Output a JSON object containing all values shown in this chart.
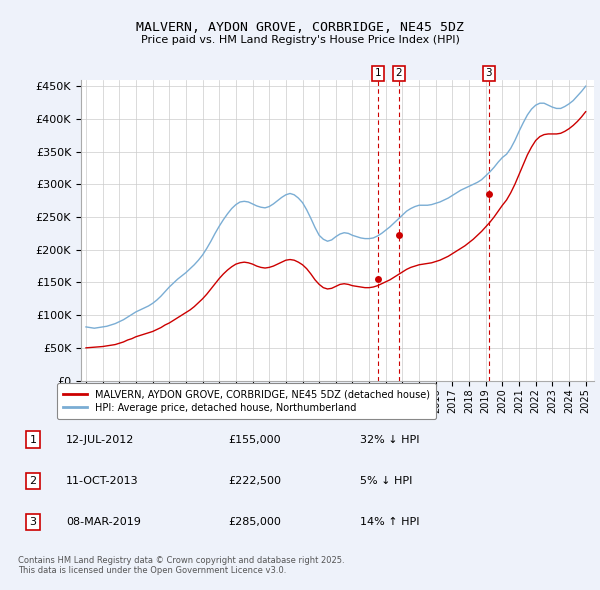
{
  "title": "MALVERN, AYDON GROVE, CORBRIDGE, NE45 5DZ",
  "subtitle": "Price paid vs. HM Land Registry's House Price Index (HPI)",
  "ylim": [
    0,
    460000
  ],
  "yticks": [
    0,
    50000,
    100000,
    150000,
    200000,
    250000,
    300000,
    350000,
    400000,
    450000
  ],
  "ytick_labels": [
    "£0",
    "£50K",
    "£100K",
    "£150K",
    "£200K",
    "£250K",
    "£300K",
    "£350K",
    "£400K",
    "£450K"
  ],
  "background_color": "#eef2fa",
  "plot_background": "#ffffff",
  "grid_color": "#cccccc",
  "red_line_color": "#cc0000",
  "blue_line_color": "#7aadd4",
  "sale_marker_color": "#cc0000",
  "vline_color": "#cc0000",
  "legend_label_red": "MALVERN, AYDON GROVE, CORBRIDGE, NE45 5DZ (detached house)",
  "legend_label_blue": "HPI: Average price, detached house, Northumberland",
  "sales": [
    {
      "num": 1,
      "date": "12-JUL-2012",
      "x": 2012.53,
      "price": 155000,
      "hpi_pct": "32% ↓ HPI"
    },
    {
      "num": 2,
      "date": "11-OCT-2013",
      "x": 2013.78,
      "price": 222500,
      "hpi_pct": "5% ↓ HPI"
    },
    {
      "num": 3,
      "date": "08-MAR-2019",
      "x": 2019.18,
      "price": 285000,
      "hpi_pct": "14% ↑ HPI"
    }
  ],
  "footer": "Contains HM Land Registry data © Crown copyright and database right 2025.\nThis data is licensed under the Open Government Licence v3.0.",
  "hpi_data": {
    "years": [
      1995.0,
      1995.25,
      1995.5,
      1995.75,
      1996.0,
      1996.25,
      1996.5,
      1996.75,
      1997.0,
      1997.25,
      1997.5,
      1997.75,
      1998.0,
      1998.25,
      1998.5,
      1998.75,
      1999.0,
      1999.25,
      1999.5,
      1999.75,
      2000.0,
      2000.25,
      2000.5,
      2000.75,
      2001.0,
      2001.25,
      2001.5,
      2001.75,
      2002.0,
      2002.25,
      2002.5,
      2002.75,
      2003.0,
      2003.25,
      2003.5,
      2003.75,
      2004.0,
      2004.25,
      2004.5,
      2004.75,
      2005.0,
      2005.25,
      2005.5,
      2005.75,
      2006.0,
      2006.25,
      2006.5,
      2006.75,
      2007.0,
      2007.25,
      2007.5,
      2007.75,
      2008.0,
      2008.25,
      2008.5,
      2008.75,
      2009.0,
      2009.25,
      2009.5,
      2009.75,
      2010.0,
      2010.25,
      2010.5,
      2010.75,
      2011.0,
      2011.25,
      2011.5,
      2011.75,
      2012.0,
      2012.25,
      2012.5,
      2012.75,
      2013.0,
      2013.25,
      2013.5,
      2013.75,
      2014.0,
      2014.25,
      2014.5,
      2014.75,
      2015.0,
      2015.25,
      2015.5,
      2015.75,
      2016.0,
      2016.25,
      2016.5,
      2016.75,
      2017.0,
      2017.25,
      2017.5,
      2017.75,
      2018.0,
      2018.25,
      2018.5,
      2018.75,
      2019.0,
      2019.25,
      2019.5,
      2019.75,
      2020.0,
      2020.25,
      2020.5,
      2020.75,
      2021.0,
      2021.25,
      2021.5,
      2021.75,
      2022.0,
      2022.25,
      2022.5,
      2022.75,
      2023.0,
      2023.25,
      2023.5,
      2023.75,
      2024.0,
      2024.25,
      2024.5,
      2024.75,
      2025.0
    ],
    "values": [
      82000,
      81000,
      80000,
      81000,
      82000,
      83000,
      85000,
      87000,
      90000,
      93000,
      97000,
      101000,
      105000,
      108000,
      111000,
      114000,
      118000,
      123000,
      129000,
      136000,
      143000,
      149000,
      155000,
      160000,
      165000,
      171000,
      177000,
      184000,
      192000,
      202000,
      213000,
      225000,
      236000,
      246000,
      255000,
      263000,
      269000,
      273000,
      274000,
      273000,
      270000,
      267000,
      265000,
      264000,
      266000,
      270000,
      275000,
      280000,
      284000,
      286000,
      284000,
      279000,
      272000,
      261000,
      248000,
      234000,
      222000,
      216000,
      213000,
      215000,
      220000,
      224000,
      226000,
      225000,
      222000,
      220000,
      218000,
      217000,
      217000,
      218000,
      221000,
      225000,
      230000,
      235000,
      241000,
      247000,
      253000,
      259000,
      263000,
      266000,
      268000,
      268000,
      268000,
      269000,
      271000,
      273000,
      276000,
      279000,
      283000,
      287000,
      291000,
      294000,
      297000,
      300000,
      303000,
      307000,
      313000,
      319000,
      326000,
      334000,
      341000,
      346000,
      355000,
      367000,
      381000,
      394000,
      406000,
      415000,
      421000,
      424000,
      424000,
      421000,
      418000,
      416000,
      416000,
      419000,
      423000,
      428000,
      435000,
      442000,
      450000
    ]
  },
  "price_data": {
    "years": [
      1995.0,
      1995.25,
      1995.5,
      1995.75,
      1996.0,
      1996.25,
      1996.5,
      1996.75,
      1997.0,
      1997.25,
      1997.5,
      1997.75,
      1998.0,
      1998.25,
      1998.5,
      1998.75,
      1999.0,
      1999.25,
      1999.5,
      1999.75,
      2000.0,
      2000.25,
      2000.5,
      2000.75,
      2001.0,
      2001.25,
      2001.5,
      2001.75,
      2002.0,
      2002.25,
      2002.5,
      2002.75,
      2003.0,
      2003.25,
      2003.5,
      2003.75,
      2004.0,
      2004.25,
      2004.5,
      2004.75,
      2005.0,
      2005.25,
      2005.5,
      2005.75,
      2006.0,
      2006.25,
      2006.5,
      2006.75,
      2007.0,
      2007.25,
      2007.5,
      2007.75,
      2008.0,
      2008.25,
      2008.5,
      2008.75,
      2009.0,
      2009.25,
      2009.5,
      2009.75,
      2010.0,
      2010.25,
      2010.5,
      2010.75,
      2011.0,
      2011.25,
      2011.5,
      2011.75,
      2012.0,
      2012.25,
      2012.5,
      2012.75,
      2013.0,
      2013.25,
      2013.5,
      2013.75,
      2014.0,
      2014.25,
      2014.5,
      2014.75,
      2015.0,
      2015.25,
      2015.5,
      2015.75,
      2016.0,
      2016.25,
      2016.5,
      2016.75,
      2017.0,
      2017.25,
      2017.5,
      2017.75,
      2018.0,
      2018.25,
      2018.5,
      2018.75,
      2019.0,
      2019.25,
      2019.5,
      2019.75,
      2020.0,
      2020.25,
      2020.5,
      2020.75,
      2021.0,
      2021.25,
      2021.5,
      2021.75,
      2022.0,
      2022.25,
      2022.5,
      2022.75,
      2023.0,
      2023.25,
      2023.5,
      2023.75,
      2024.0,
      2024.25,
      2024.5,
      2024.75,
      2025.0
    ],
    "values": [
      50000,
      50500,
      51000,
      51500,
      52000,
      53000,
      54000,
      55000,
      57000,
      59000,
      62000,
      64000,
      67000,
      69000,
      71000,
      73000,
      75000,
      78000,
      81000,
      85000,
      88000,
      92000,
      96000,
      100000,
      104000,
      108000,
      113000,
      119000,
      125000,
      132000,
      140000,
      148000,
      156000,
      163000,
      169000,
      174000,
      178000,
      180000,
      181000,
      180000,
      178000,
      175000,
      173000,
      172000,
      173000,
      175000,
      178000,
      181000,
      184000,
      185000,
      184000,
      181000,
      177000,
      171000,
      163000,
      154000,
      147000,
      142000,
      140000,
      141000,
      144000,
      147000,
      148000,
      147000,
      145000,
      144000,
      143000,
      142000,
      142000,
      143000,
      145000,
      148000,
      151000,
      154000,
      158000,
      162000,
      166000,
      170000,
      173000,
      175000,
      177000,
      178000,
      179000,
      180000,
      182000,
      184000,
      187000,
      190000,
      194000,
      198000,
      202000,
      206000,
      211000,
      216000,
      222000,
      228000,
      235000,
      242000,
      250000,
      259000,
      268000,
      276000,
      287000,
      300000,
      315000,
      330000,
      345000,
      357000,
      367000,
      373000,
      376000,
      377000,
      377000,
      377000,
      378000,
      381000,
      385000,
      390000,
      396000,
      403000,
      411000
    ]
  }
}
